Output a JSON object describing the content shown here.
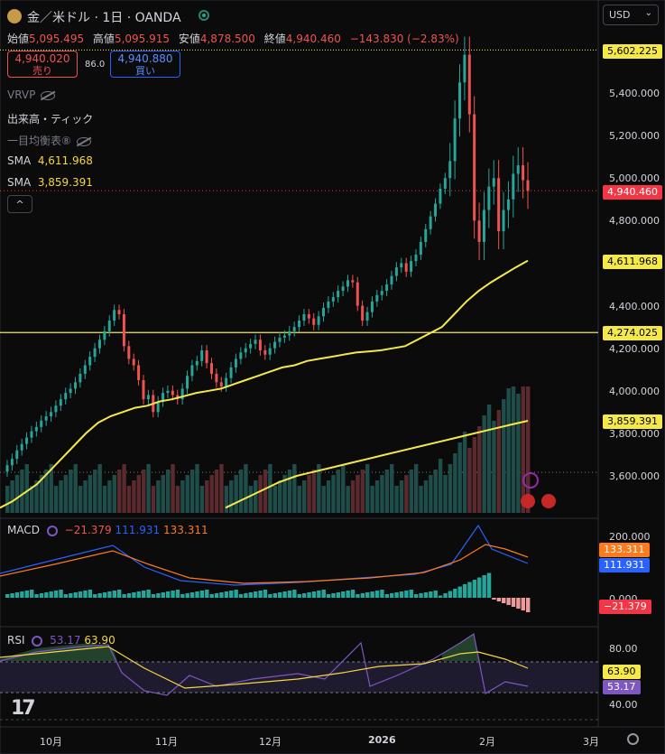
{
  "header": {
    "title": "金／米ドル · 1日 · OANDA",
    "currency": "USD",
    "icons": [
      "gold-logo-icon",
      "live-status-icon",
      "chevron-down-icon"
    ]
  },
  "ohlc": {
    "open_label": "始値",
    "open": "5,095.495",
    "high_label": "高値",
    "high": "5,095.915",
    "low_label": "安値",
    "low": "4,878.500",
    "close_label": "終値",
    "close": "4,940.460",
    "change": "−143.830 (−2.83%)"
  },
  "trade": {
    "sell_price": "4,940.020",
    "sell_label": "売り",
    "spread": "86.0",
    "buy_price": "4,940.880",
    "buy_label": "買い"
  },
  "indicators": {
    "vrvp": "VRVP",
    "volume": "出来高・ティック",
    "ichimoku": "一目均衡表⑧",
    "sma1_label": "SMA",
    "sma1_value": "4,611.968",
    "sma2_label": "SMA",
    "sma2_value": "3,859.391",
    "collapse": "^"
  },
  "price_axis": {
    "ticks": [
      "5,400.000",
      "5,200.000",
      "5,000.000",
      "4,800.000",
      "4,400.000",
      "4,200.000",
      "4,000.000",
      "3,800.000",
      "3,600.000"
    ],
    "tag_high": "5,602.225",
    "tag_last": "4,940.460",
    "tag_sma1": "4,611.968",
    "tag_level": "4,274.025",
    "tag_sma2": "3,859.391"
  },
  "macd": {
    "label": "MACD",
    "hist": "−21.379",
    "macd": "111.931",
    "signal": "133.311",
    "ticks": [
      "200.000",
      "0.000"
    ],
    "tag_signal": "133.311",
    "tag_macd": "111.931",
    "tag_hist": "−21.379"
  },
  "rsi": {
    "label": "RSI",
    "value": "53.17",
    "ma": "63.90",
    "ticks": [
      "80.00",
      "40.00"
    ],
    "tag_ma": "63.90",
    "tag_value": "53.17"
  },
  "time_axis": {
    "labels": [
      "10月",
      "11月",
      "12月",
      "2026",
      "2月",
      "3月"
    ]
  },
  "chart_data": {
    "type": "candlestick",
    "symbol": "XAU/USD",
    "timeframe": "1D",
    "ylim": [
      3450,
      5650
    ],
    "closes": [
      3650,
      3680,
      3720,
      3750,
      3780,
      3810,
      3830,
      3860,
      3880,
      3900,
      3930,
      3960,
      3990,
      4010,
      4040,
      4080,
      4120,
      4160,
      4200,
      4240,
      4280,
      4330,
      4380,
      4360,
      4210,
      4150,
      4120,
      4050,
      3960,
      3980,
      3900,
      3950,
      3990,
      4000,
      3980,
      3960,
      4010,
      4070,
      4120,
      4140,
      4190,
      4130,
      4080,
      4040,
      4020,
      4060,
      4110,
      4150,
      4180,
      4200,
      4220,
      4240,
      4190,
      4170,
      4200,
      4230,
      4250,
      4260,
      4280,
      4300,
      4330,
      4360,
      4340,
      4310,
      4350,
      4390,
      4420,
      4440,
      4470,
      4490,
      4520,
      4510,
      4400,
      4330,
      4370,
      4420,
      4450,
      4470,
      4500,
      4540,
      4580,
      4600,
      4560,
      4610,
      4640,
      4700,
      4760,
      4820,
      4880,
      4950,
      5000,
      5080,
      5280,
      5450,
      5580,
      5300,
      4800,
      4700,
      4850,
      4960,
      5000,
      4750,
      4850,
      4900,
      5020,
      5060,
      4990,
      4940
    ],
    "sma_fast": [
      3450,
      3480,
      3520,
      3560,
      3620,
      3680,
      3740,
      3800,
      3850,
      3880,
      3900,
      3920,
      3930,
      3950,
      3960,
      3975,
      3990,
      4000,
      4010,
      4030,
      4050,
      4070,
      4090,
      4110,
      4120,
      4140,
      4150,
      4160,
      4170,
      4180,
      4185,
      4190,
      4200,
      4210,
      4240,
      4270,
      4300,
      4360,
      4420,
      4470,
      4510,
      4545,
      4580,
      4612
    ],
    "sma_slow": [
      3450,
      3490,
      3530,
      3570,
      3600,
      3620,
      3640,
      3660,
      3680,
      3700,
      3720,
      3740,
      3760,
      3780,
      3800,
      3820,
      3840,
      3859
    ],
    "level_lines": [
      5602.225,
      4274.025
    ],
    "last": 4940.46
  }
}
